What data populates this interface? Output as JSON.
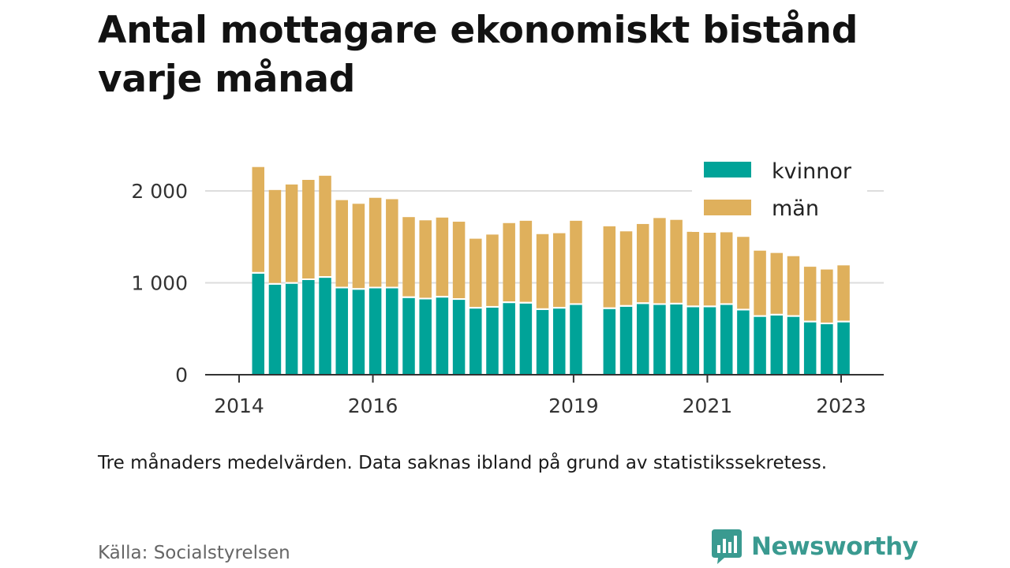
{
  "title": "Antal mottagare ekonomiskt bistånd varje månad",
  "note": "Tre månaders medelvärden. Data saknas ibland på grund av statistikssekretess.",
  "source": "Källa: Socialstyrelsen",
  "brand": {
    "name": "Newsworthy",
    "icon": "newsworthy-logo-icon"
  },
  "colors": {
    "kvinnor": "#00a398",
    "man": "#dfb05c",
    "grid": "#dddddd",
    "axis": "#333333"
  },
  "chart_data": {
    "type": "bar",
    "stacked": true,
    "ylim": [
      0,
      2300
    ],
    "yticks": [
      0,
      1000,
      2000
    ],
    "ytick_labels": [
      "0",
      "1 000",
      "2 000"
    ],
    "xticks": [
      {
        "label": "2014",
        "at": "2014-01"
      },
      {
        "label": "2016",
        "at": "2016-01"
      },
      {
        "label": "2019",
        "at": "2019-01"
      },
      {
        "label": "2021",
        "at": "2021-01"
      },
      {
        "label": "2023",
        "at": "2023-01"
      }
    ],
    "legend_position": "top-right",
    "categories": [
      "2014-05",
      "2014-08",
      "2014-11",
      "2015-02",
      "2015-05",
      "2015-08",
      "2015-11",
      "2016-02",
      "2016-05",
      "2016-08",
      "2016-11",
      "2017-02",
      "2017-05",
      "2017-08",
      "2017-11",
      "2018-02",
      "2018-05",
      "2018-08",
      "2018-11",
      "2019-02",
      "2019-05",
      "2019-08",
      "2019-11",
      "2020-02",
      "2020-05",
      "2020-08",
      "2020-11",
      "2021-02",
      "2021-05",
      "2021-08",
      "2021-11",
      "2022-02",
      "2022-05",
      "2022-08",
      "2022-11",
      "2023-02",
      "2023-05"
    ],
    "series": [
      {
        "name": "kvinnor",
        "values": [
          1100,
          980,
          990,
          1030,
          1055,
          940,
          925,
          940,
          940,
          835,
          820,
          840,
          815,
          720,
          730,
          780,
          775,
          705,
          720,
          760,
          null,
          715,
          740,
          770,
          760,
          765,
          735,
          735,
          760,
          700,
          630,
          645,
          630,
          570,
          550,
          570,
          null
        ]
      },
      {
        "name": "män",
        "values": [
          1160,
          1030,
          1080,
          1090,
          1110,
          960,
          935,
          985,
          970,
          880,
          860,
          870,
          850,
          760,
          795,
          870,
          900,
          825,
          820,
          915,
          null,
          900,
          820,
          870,
          945,
          920,
          820,
          810,
          790,
          800,
          720,
          680,
          660,
          605,
          595,
          620,
          null
        ]
      }
    ]
  }
}
